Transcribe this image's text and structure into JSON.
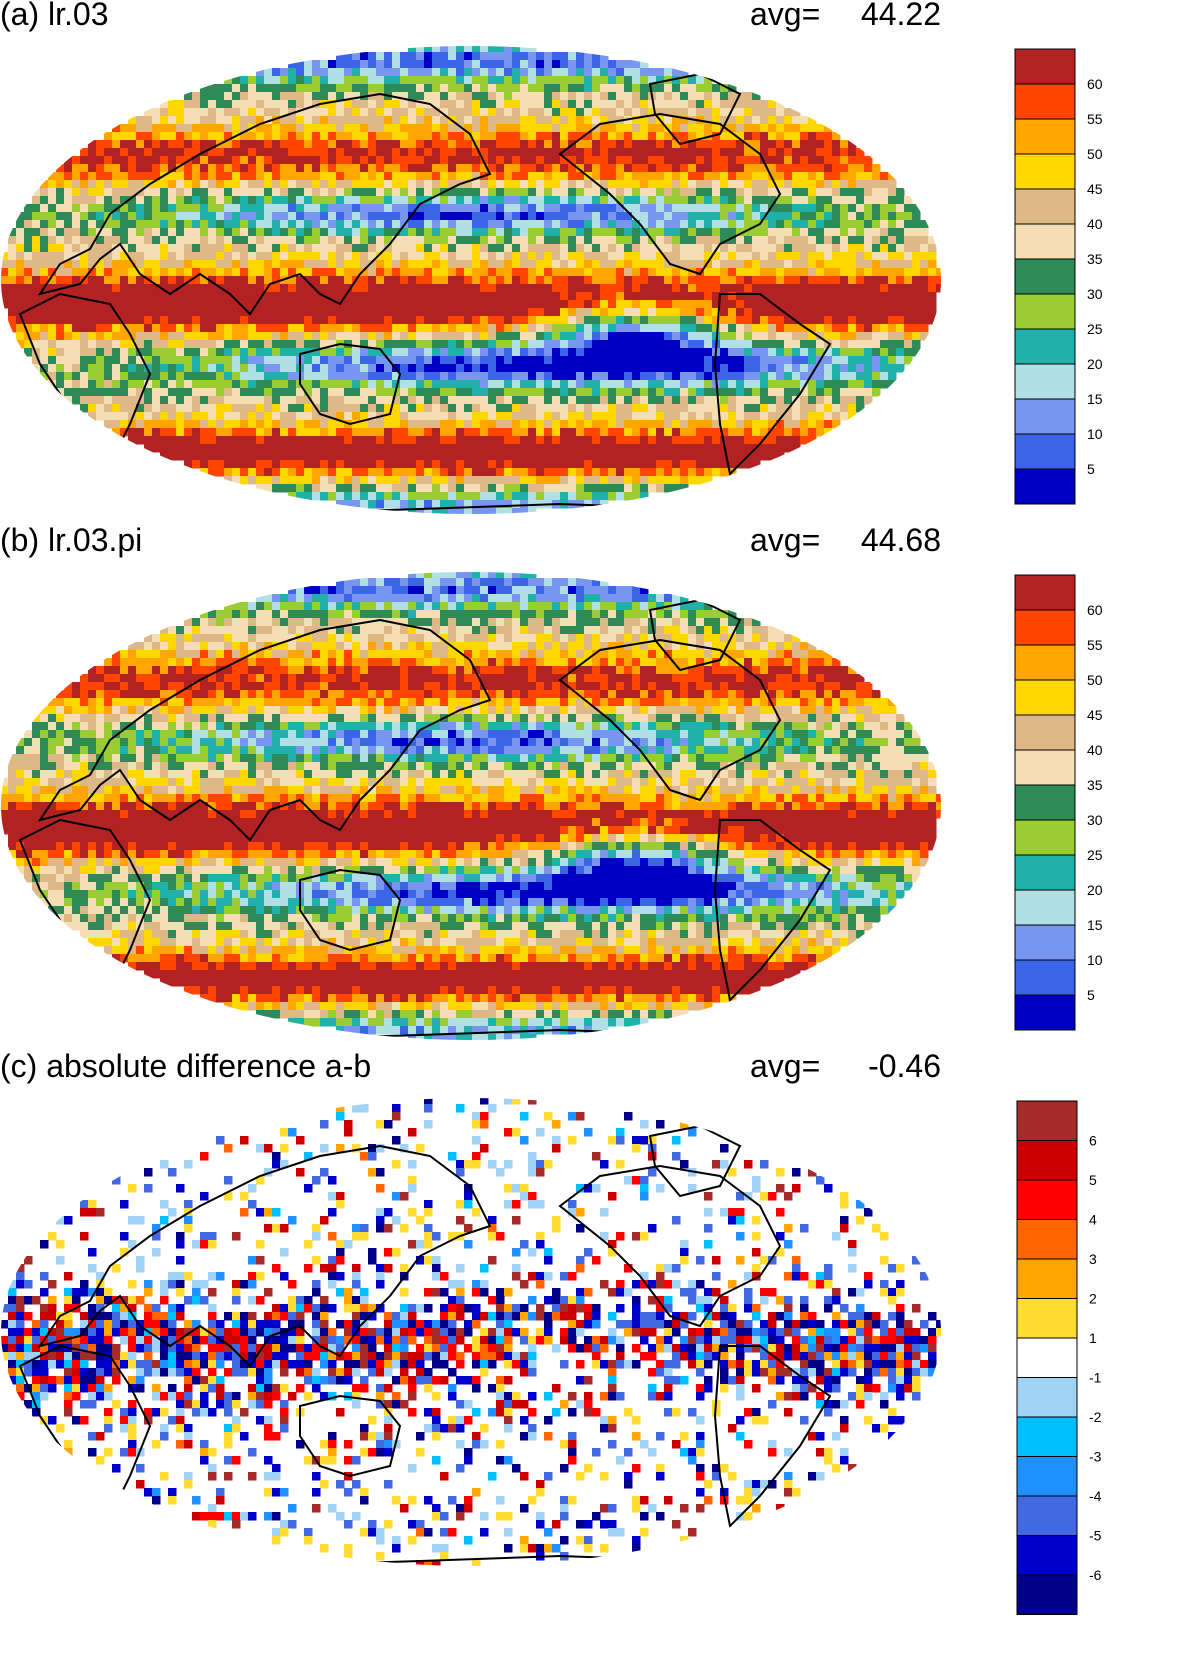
{
  "colors": {
    "precip_levels": [
      "#0000c4",
      "#3c64e6",
      "#7896f0",
      "#b0e0e6",
      "#20b2aa",
      "#9acd32",
      "#2e8b57",
      "#f5deb3",
      "#deb887",
      "#ffd700",
      "#ffa500",
      "#ff4500",
      "#b22222"
    ],
    "diff_levels": [
      "#00008b",
      "#0000cd",
      "#4169e1",
      "#1e90ff",
      "#00bfff",
      "#a0d2f5",
      "#ffffff",
      "#ffdc32",
      "#ffa500",
      "#ff6600",
      "#ff0000",
      "#cd0000",
      "#a52a2a"
    ],
    "coastline": "#000000"
  },
  "chart_data": [
    {
      "type": "heatmap",
      "panel": "a",
      "title": "(a) lr.03",
      "avg_label": "avg=",
      "avg_value": "44.22",
      "projection": "robinson",
      "colorbar": {
        "levels": [
          "60",
          "55",
          "50",
          "45",
          "40",
          "35",
          "30",
          "25",
          "20",
          "15",
          "10",
          "5"
        ]
      }
    },
    {
      "type": "heatmap",
      "panel": "b",
      "title": "(b) lr.03.pi",
      "avg_label": "avg=",
      "avg_value": "44.68",
      "projection": "robinson",
      "colorbar": {
        "levels": [
          "60",
          "55",
          "50",
          "45",
          "40",
          "35",
          "30",
          "25",
          "20",
          "15",
          "10",
          "5"
        ]
      }
    },
    {
      "type": "heatmap",
      "panel": "c",
      "title": "(c) absolute difference a-b",
      "avg_label": "avg=",
      "avg_value": "-0.46",
      "projection": "robinson",
      "colorbar": {
        "levels": [
          "6",
          "5",
          "4",
          "3",
          "2",
          "1",
          "-1",
          "-2",
          "-3",
          "-4",
          "-5",
          "-6"
        ]
      }
    }
  ]
}
